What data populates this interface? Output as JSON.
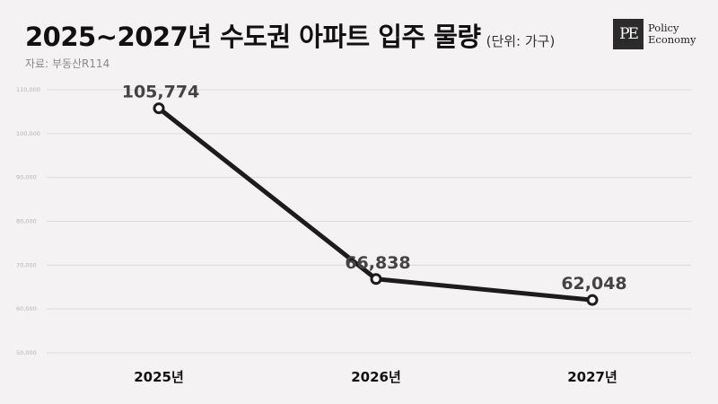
{
  "header": {
    "title": "2025~2027년 수도권 아파트 입주 물량",
    "unit": "(단위: 가구)",
    "source": "자료: 부동산R114"
  },
  "logo": {
    "mark": "PE",
    "line1": "Policy",
    "line2": "Economy"
  },
  "chart_data": {
    "type": "line",
    "title": "2025~2027년 수도권 아파트 입주 물량",
    "categories": [
      "2025년",
      "2026년",
      "2027년"
    ],
    "series": [
      {
        "values": [
          105774,
          66838,
          62048
        ]
      }
    ],
    "data_labels": [
      "105,774",
      "66,838",
      "62,048"
    ],
    "yticks": [
      "50,000",
      "60,000",
      "70,000",
      "80,000",
      "90,000",
      "100,000",
      "110,000"
    ],
    "ylim": [
      50000,
      110000
    ],
    "grid": true,
    "line_color": "#1e1b1c"
  }
}
